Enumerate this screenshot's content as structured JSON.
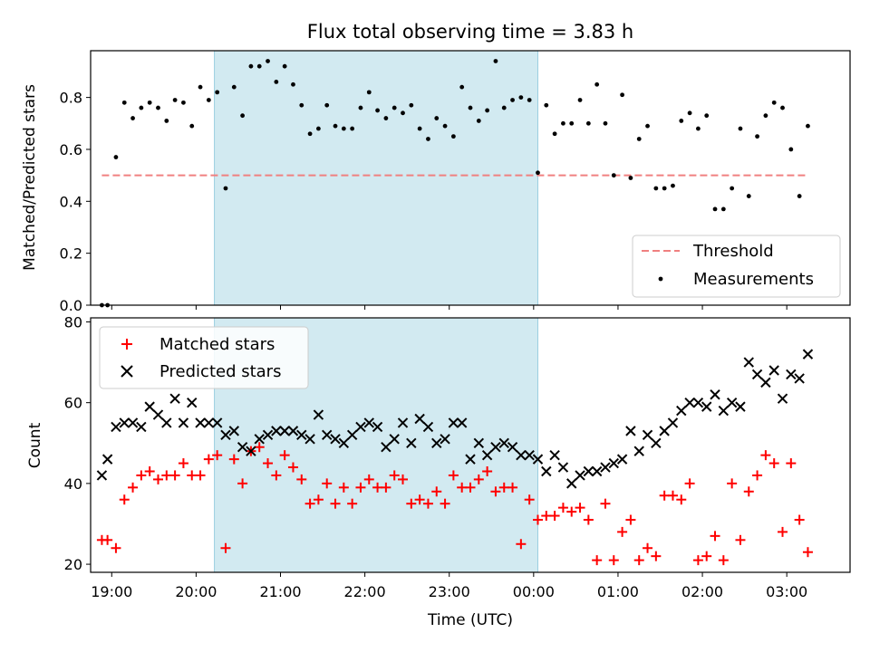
{
  "chart_data": [
    {
      "type": "scatter",
      "title": "Flux total observing time = 3.83 h",
      "xlabel": "",
      "ylabel": "Matched/Predicted stars",
      "xlim": [
        "18:45",
        "03:45"
      ],
      "ylim": [
        0,
        0.98
      ],
      "yticks": [
        "0.0",
        "0.2",
        "0.4",
        "0.6",
        "0.8"
      ],
      "shaded_interval": [
        "20:13",
        "00:03"
      ],
      "legend_position": "lower-right",
      "series": [
        {
          "name": "Threshold",
          "style": "dashed-line",
          "color": "#f08080",
          "x": [
            "18:53",
            "03:15"
          ],
          "y": [
            0.5,
            0.5
          ]
        },
        {
          "name": "Measurements",
          "style": "dot",
          "color": "#000000",
          "x": [
            "18:53",
            "18:57",
            "19:03",
            "19:09",
            "19:15",
            "19:21",
            "19:27",
            "19:33",
            "19:39",
            "19:45",
            "19:51",
            "19:57",
            "20:03",
            "20:09",
            "20:15",
            "20:21",
            "20:27",
            "20:33",
            "20:39",
            "20:45",
            "20:51",
            "20:57",
            "21:03",
            "21:09",
            "21:15",
            "21:21",
            "21:27",
            "21:33",
            "21:39",
            "21:45",
            "21:51",
            "21:57",
            "22:03",
            "22:09",
            "22:15",
            "22:21",
            "22:27",
            "22:33",
            "22:39",
            "22:45",
            "22:51",
            "22:57",
            "23:03",
            "23:09",
            "23:15",
            "23:21",
            "23:27",
            "23:33",
            "23:39",
            "23:45",
            "23:51",
            "23:57",
            "00:03",
            "00:09",
            "00:15",
            "00:21",
            "00:27",
            "00:33",
            "00:39",
            "00:45",
            "00:51",
            "00:57",
            "01:03",
            "01:09",
            "01:15",
            "01:21",
            "01:27",
            "01:33",
            "01:39",
            "01:45",
            "01:51",
            "01:57",
            "02:03",
            "02:09",
            "02:15",
            "02:21",
            "02:27",
            "02:33",
            "02:39",
            "02:45",
            "02:51",
            "02:57",
            "03:03",
            "03:09",
            "03:15"
          ],
          "y": [
            0.0,
            0.0,
            0.57,
            0.78,
            0.72,
            0.76,
            0.78,
            0.76,
            0.71,
            0.79,
            0.78,
            0.69,
            0.84,
            0.79,
            0.82,
            0.45,
            0.84,
            0.73,
            0.92,
            0.92,
            0.94,
            0.86,
            0.92,
            0.85,
            0.77,
            0.66,
            0.68,
            0.77,
            0.69,
            0.68,
            0.68,
            0.76,
            0.82,
            0.75,
            0.72,
            0.76,
            0.74,
            0.77,
            0.68,
            0.64,
            0.72,
            0.69,
            0.65,
            0.84,
            0.76,
            0.71,
            0.75,
            0.94,
            0.76,
            0.79,
            0.8,
            0.79,
            0.51,
            0.77,
            0.66,
            0.7,
            0.7,
            0.79,
            0.7,
            0.85,
            0.7,
            0.5,
            0.81,
            0.49,
            0.64,
            0.69,
            0.45,
            0.45,
            0.46,
            0.71,
            0.74,
            0.68,
            0.73,
            0.37,
            0.37,
            0.45,
            0.68,
            0.42,
            0.65,
            0.73,
            0.78,
            0.76,
            0.6,
            0.42,
            0.69
          ]
        }
      ]
    },
    {
      "type": "scatter",
      "title": "",
      "xlabel": "Time (UTC)",
      "ylabel": "Count",
      "xlim": [
        "18:45",
        "03:45"
      ],
      "ylim": [
        18,
        81
      ],
      "xticks": [
        "19:00",
        "20:00",
        "21:00",
        "22:00",
        "23:00",
        "00:00",
        "01:00",
        "02:00",
        "03:00"
      ],
      "yticks": [
        "20",
        "40",
        "60",
        "80"
      ],
      "shaded_interval": [
        "20:13",
        "00:03"
      ],
      "legend_position": "upper-left",
      "series": [
        {
          "name": "Matched stars",
          "marker": "+",
          "color": "#ff0000",
          "x": [
            "18:53",
            "18:57",
            "19:03",
            "19:09",
            "19:15",
            "19:21",
            "19:27",
            "19:33",
            "19:39",
            "19:45",
            "19:51",
            "19:57",
            "20:03",
            "20:09",
            "20:15",
            "20:21",
            "20:27",
            "20:33",
            "20:39",
            "20:45",
            "20:51",
            "20:57",
            "21:03",
            "21:09",
            "21:15",
            "21:21",
            "21:27",
            "21:33",
            "21:39",
            "21:45",
            "21:51",
            "21:57",
            "22:03",
            "22:09",
            "22:15",
            "22:21",
            "22:27",
            "22:33",
            "22:39",
            "22:45",
            "22:51",
            "22:57",
            "23:03",
            "23:09",
            "23:15",
            "23:21",
            "23:27",
            "23:33",
            "23:39",
            "23:45",
            "23:51",
            "23:57",
            "00:03",
            "00:09",
            "00:15",
            "00:21",
            "00:27",
            "00:33",
            "00:39",
            "00:45",
            "00:51",
            "00:57",
            "01:03",
            "01:09",
            "01:15",
            "01:21",
            "01:27",
            "01:33",
            "01:39",
            "01:45",
            "01:51",
            "01:57",
            "02:03",
            "02:09",
            "02:15",
            "02:21",
            "02:27",
            "02:33",
            "02:39",
            "02:45",
            "02:51",
            "02:57",
            "03:03",
            "03:09",
            "03:15"
          ],
          "y": [
            26,
            26,
            24,
            36,
            39,
            42,
            43,
            41,
            42,
            42,
            45,
            42,
            42,
            46,
            47,
            24,
            46,
            40,
            48,
            49,
            45,
            42,
            47,
            44,
            41,
            35,
            36,
            40,
            35,
            39,
            35,
            39,
            41,
            39,
            39,
            42,
            41,
            35,
            36,
            35,
            38,
            35,
            42,
            39,
            39,
            41,
            43,
            38,
            39,
            39,
            25,
            36,
            31,
            32,
            32,
            34,
            33,
            34,
            31,
            21,
            35,
            21,
            28,
            31,
            21,
            24,
            22,
            37,
            37,
            36,
            40,
            21,
            22,
            27,
            21,
            40,
            26,
            38,
            42,
            47,
            45,
            28,
            45,
            31,
            23
          ]
        },
        {
          "name": "Predicted stars",
          "marker": "x",
          "color": "#000000",
          "x": [
            "18:53",
            "18:57",
            "19:03",
            "19:09",
            "19:15",
            "19:21",
            "19:27",
            "19:33",
            "19:39",
            "19:45",
            "19:51",
            "19:57",
            "20:03",
            "20:09",
            "20:15",
            "20:21",
            "20:27",
            "20:33",
            "20:39",
            "20:45",
            "20:51",
            "20:57",
            "21:03",
            "21:09",
            "21:15",
            "21:21",
            "21:27",
            "21:33",
            "21:39",
            "21:45",
            "21:51",
            "21:57",
            "22:03",
            "22:09",
            "22:15",
            "22:21",
            "22:27",
            "22:33",
            "22:39",
            "22:45",
            "22:51",
            "22:57",
            "23:03",
            "23:09",
            "23:15",
            "23:21",
            "23:27",
            "23:33",
            "23:39",
            "23:45",
            "23:51",
            "23:57",
            "00:03",
            "00:09",
            "00:15",
            "00:21",
            "00:27",
            "00:33",
            "00:39",
            "00:45",
            "00:51",
            "00:57",
            "01:03",
            "01:09",
            "01:15",
            "01:21",
            "01:27",
            "01:33",
            "01:39",
            "01:45",
            "01:51",
            "01:57",
            "02:03",
            "02:09",
            "02:15",
            "02:21",
            "02:27",
            "02:33",
            "02:39",
            "02:45",
            "02:51",
            "02:57",
            "03:03",
            "03:09",
            "03:15"
          ],
          "y": [
            42,
            46,
            54,
            55,
            55,
            54,
            59,
            57,
            55,
            61,
            55,
            60,
            55,
            55,
            55,
            52,
            53,
            49,
            48,
            51,
            52,
            53,
            53,
            53,
            52,
            51,
            57,
            52,
            51,
            50,
            52,
            54,
            55,
            54,
            49,
            51,
            55,
            50,
            56,
            54,
            50,
            51,
            55,
            55,
            46,
            50,
            47,
            49,
            50,
            49,
            47,
            47,
            46,
            43,
            47,
            44,
            40,
            42,
            43,
            43,
            44,
            45,
            46,
            53,
            48,
            52,
            50,
            53,
            55,
            58,
            60,
            60,
            59,
            62,
            58,
            60,
            59,
            70,
            67,
            65,
            68,
            61,
            67,
            66,
            72
          ]
        }
      ]
    }
  ]
}
